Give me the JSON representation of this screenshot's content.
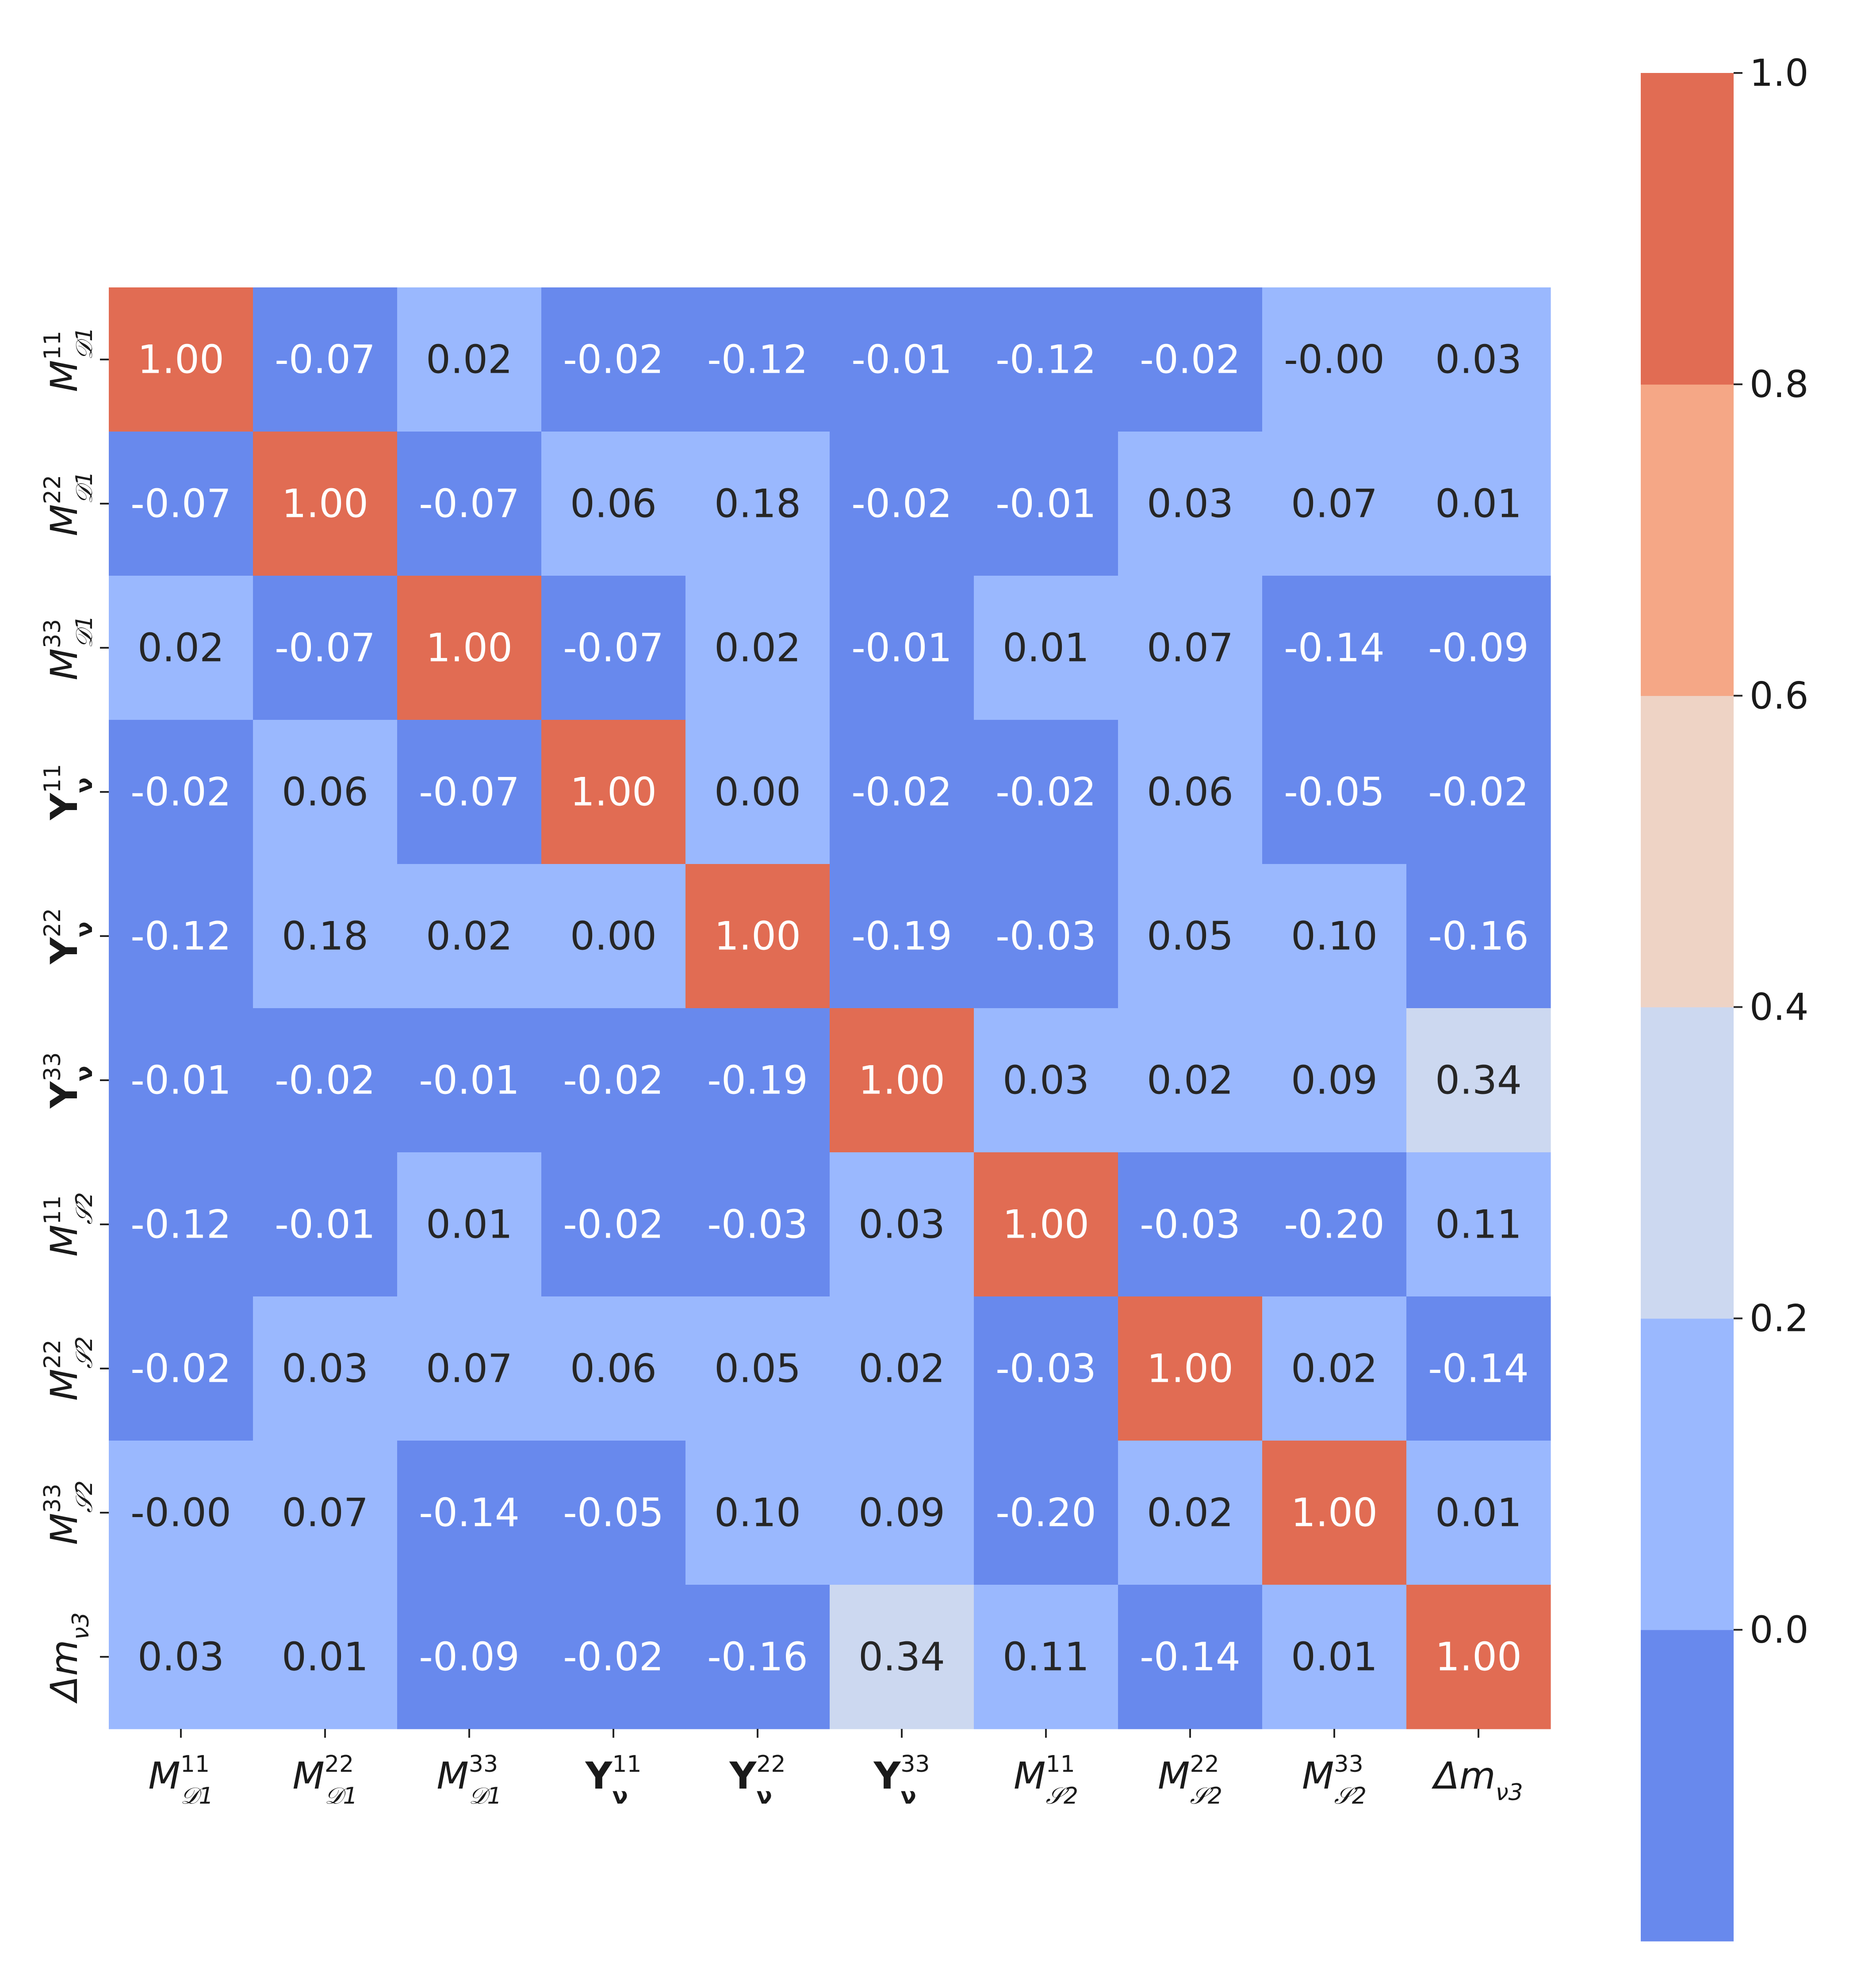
{
  "chart_data": {
    "type": "heatmap",
    "title": "",
    "row_labels": [
      {
        "base": "M",
        "sup": "11",
        "sub": "𝒟1",
        "bold": false,
        "italic": true
      },
      {
        "base": "M",
        "sup": "22",
        "sub": "𝒟1",
        "bold": false,
        "italic": true
      },
      {
        "base": "M",
        "sup": "33",
        "sub": "𝒟1",
        "bold": false,
        "italic": true
      },
      {
        "base": "Y",
        "sup": "11",
        "sub": "ν",
        "bold": true,
        "italic": false
      },
      {
        "base": "Y",
        "sup": "22",
        "sub": "ν",
        "bold": true,
        "italic": false
      },
      {
        "base": "Y",
        "sup": "33",
        "sub": "ν",
        "bold": true,
        "italic": false
      },
      {
        "base": "M",
        "sup": "11",
        "sub": "𝒮2",
        "bold": false,
        "italic": true
      },
      {
        "base": "M",
        "sup": "22",
        "sub": "𝒮2",
        "bold": false,
        "italic": true
      },
      {
        "base": "M",
        "sup": "33",
        "sub": "𝒮2",
        "bold": false,
        "italic": true
      },
      {
        "base": "Δm",
        "sup": "",
        "sub": "ν3",
        "bold": false,
        "italic": true
      }
    ],
    "col_labels": [
      {
        "base": "M",
        "sup": "11",
        "sub": "𝒟1",
        "bold": false,
        "italic": true
      },
      {
        "base": "M",
        "sup": "22",
        "sub": "𝒟1",
        "bold": false,
        "italic": true
      },
      {
        "base": "M",
        "sup": "33",
        "sub": "𝒟1",
        "bold": false,
        "italic": true
      },
      {
        "base": "Y",
        "sup": "11",
        "sub": "ν",
        "bold": true,
        "italic": false
      },
      {
        "base": "Y",
        "sup": "22",
        "sub": "ν",
        "bold": true,
        "italic": false
      },
      {
        "base": "Y",
        "sup": "33",
        "sub": "ν",
        "bold": true,
        "italic": false
      },
      {
        "base": "M",
        "sup": "11",
        "sub": "𝒮2",
        "bold": false,
        "italic": true
      },
      {
        "base": "M",
        "sup": "22",
        "sub": "𝒮2",
        "bold": false,
        "italic": true
      },
      {
        "base": "M",
        "sup": "33",
        "sub": "𝒮2",
        "bold": false,
        "italic": true
      },
      {
        "base": "Δm",
        "sup": "",
        "sub": "ν3",
        "bold": false,
        "italic": true
      }
    ],
    "values": [
      [
        1.0,
        -0.07,
        0.02,
        -0.02,
        -0.12,
        -0.01,
        -0.12,
        -0.02,
        -0.0,
        0.03
      ],
      [
        -0.07,
        1.0,
        -0.07,
        0.06,
        0.18,
        -0.02,
        -0.01,
        0.03,
        0.07,
        0.01
      ],
      [
        0.02,
        -0.07,
        1.0,
        -0.07,
        0.02,
        -0.01,
        0.01,
        0.07,
        -0.14,
        -0.09
      ],
      [
        -0.02,
        0.06,
        -0.07,
        1.0,
        0.0,
        -0.02,
        -0.02,
        0.06,
        -0.05,
        -0.02
      ],
      [
        -0.12,
        0.18,
        0.02,
        0.0,
        1.0,
        -0.19,
        -0.03,
        0.05,
        0.1,
        -0.16
      ],
      [
        -0.01,
        -0.02,
        -0.01,
        -0.02,
        -0.19,
        1.0,
        0.03,
        0.02,
        0.09,
        0.34
      ],
      [
        -0.12,
        -0.01,
        0.01,
        -0.02,
        -0.03,
        0.03,
        1.0,
        -0.03,
        -0.2,
        0.11
      ],
      [
        -0.02,
        0.03,
        0.07,
        0.06,
        0.05,
        0.02,
        -0.03,
        1.0,
        0.02,
        -0.14
      ],
      [
        -0.0,
        0.07,
        -0.14,
        -0.05,
        0.1,
        0.09,
        -0.2,
        0.02,
        1.0,
        0.01
      ],
      [
        0.03,
        0.01,
        -0.09,
        -0.02,
        -0.16,
        0.34,
        0.11,
        -0.14,
        0.01,
        1.0
      ]
    ],
    "annotations": [
      [
        "1.00",
        "-0.07",
        "0.02",
        "-0.02",
        "-0.12",
        "-0.01",
        "-0.12",
        "-0.02",
        "-0.00",
        "0.03"
      ],
      [
        "-0.07",
        "1.00",
        "-0.07",
        "0.06",
        "0.18",
        "-0.02",
        "-0.01",
        "0.03",
        "0.07",
        "0.01"
      ],
      [
        "0.02",
        "-0.07",
        "1.00",
        "-0.07",
        "0.02",
        "-0.01",
        "0.01",
        "0.07",
        "-0.14",
        "-0.09"
      ],
      [
        "-0.02",
        "0.06",
        "-0.07",
        "1.00",
        "0.00",
        "-0.02",
        "-0.02",
        "0.06",
        "-0.05",
        "-0.02"
      ],
      [
        "-0.12",
        "0.18",
        "0.02",
        "0.00",
        "1.00",
        "-0.19",
        "-0.03",
        "0.05",
        "0.10",
        "-0.16"
      ],
      [
        "-0.01",
        "-0.02",
        "-0.01",
        "-0.02",
        "-0.19",
        "1.00",
        "0.03",
        "0.02",
        "0.09",
        "0.34"
      ],
      [
        "-0.12",
        "-0.01",
        "0.01",
        "-0.02",
        "-0.03",
        "0.03",
        "1.00",
        "-0.03",
        "-0.20",
        "0.11"
      ],
      [
        "-0.02",
        "0.03",
        "0.07",
        "0.06",
        "0.05",
        "0.02",
        "-0.03",
        "1.00",
        "0.02",
        "-0.14"
      ],
      [
        "-0.00",
        "0.07",
        "-0.14",
        "-0.05",
        "0.10",
        "0.09",
        "-0.20",
        "0.02",
        "1.00",
        "0.01"
      ],
      [
        "0.03",
        "0.01",
        "-0.09",
        "-0.02",
        "-0.16",
        "0.34",
        "0.11",
        "-0.14",
        "0.01",
        "1.00"
      ]
    ],
    "colorbar": {
      "range": [
        -0.2,
        1.0
      ],
      "ticks": [
        0.0,
        0.2,
        0.4,
        0.6,
        0.8,
        1.0
      ],
      "tick_labels": [
        "0.0",
        "0.2",
        "0.4",
        "0.6",
        "0.8",
        "1.0"
      ],
      "bins": [
        {
          "from": -0.2,
          "to": 0.0,
          "color": "#6889ED"
        },
        {
          "from": 0.0,
          "to": 0.2,
          "color": "#9AB8FE"
        },
        {
          "from": 0.2,
          "to": 0.4,
          "color": "#CCD8F0"
        },
        {
          "from": 0.4,
          "to": 0.6,
          "color": "#EED3C5"
        },
        {
          "from": 0.6,
          "to": 0.8,
          "color": "#F5A786"
        },
        {
          "from": 0.8,
          "to": 1.0,
          "color": "#E16C53"
        }
      ],
      "placement": "right"
    },
    "text_colors": {
      "dark_cell": "#ffffff",
      "light_cell": "#262626"
    }
  }
}
